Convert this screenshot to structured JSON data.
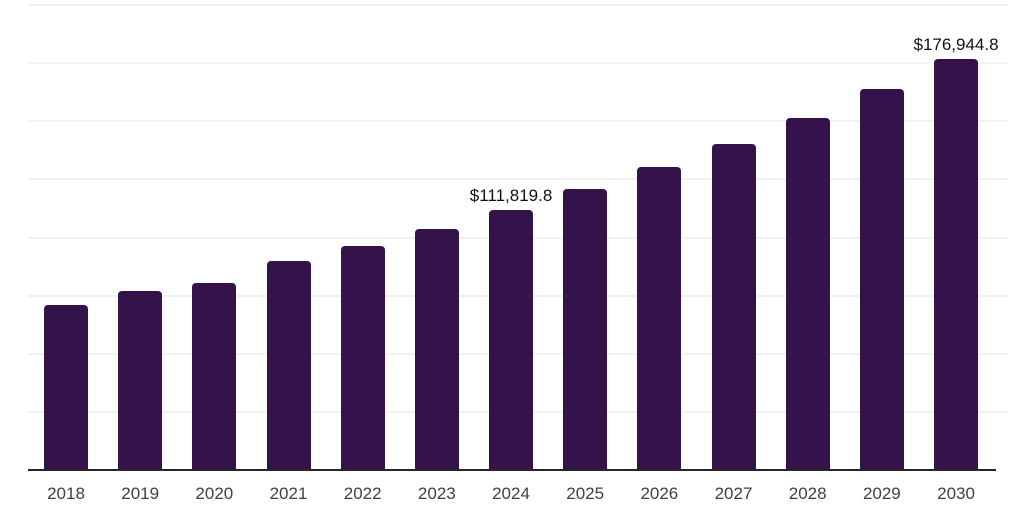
{
  "chart_data": {
    "type": "bar",
    "title": "",
    "xlabel": "",
    "ylabel": "",
    "categories": [
      "2018",
      "2019",
      "2020",
      "2021",
      "2022",
      "2023",
      "2024",
      "2025",
      "2026",
      "2027",
      "2028",
      "2029",
      "2030"
    ],
    "values": [
      71000,
      76900,
      80300,
      89700,
      96500,
      103700,
      111819.8,
      120800,
      130500,
      140300,
      151400,
      163700,
      176944.8
    ],
    "data_labels": [
      {
        "category": "2024",
        "text": "$111,819.8"
      },
      {
        "category": "2030",
        "text": "$176,944.8"
      }
    ],
    "ylim": [
      0,
      200000
    ],
    "gridline_step": 25000,
    "grid": true,
    "legend": false,
    "y_axis_labels_visible": false,
    "colors": {
      "bar": "#331349",
      "axis_line": "#262626",
      "gridline": "#f2f0f3",
      "tick_label": "#404040",
      "data_label": "#111111",
      "background": "#ffffff"
    }
  }
}
